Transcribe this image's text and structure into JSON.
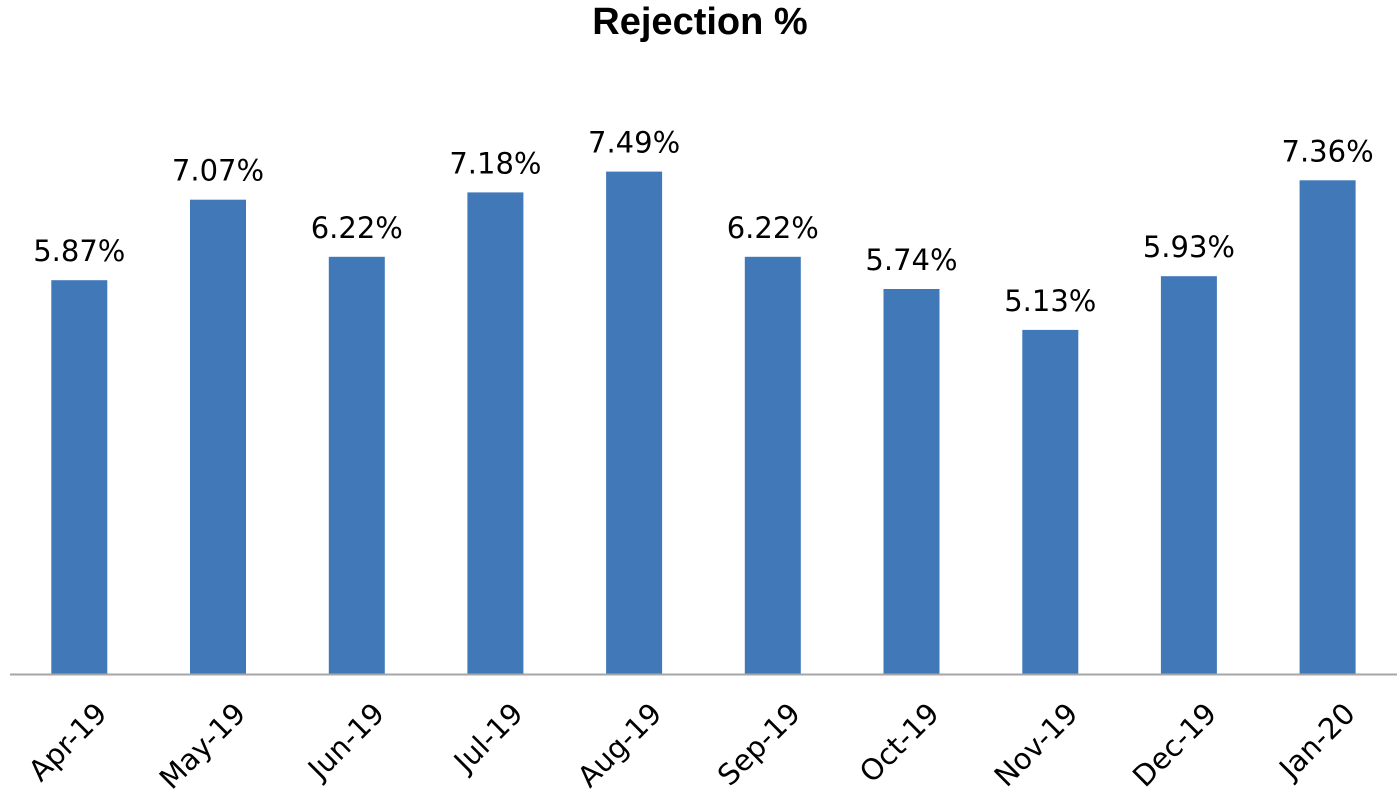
{
  "chart_data": {
    "type": "bar",
    "title": "Rejection %",
    "xlabel": "",
    "ylabel": "",
    "categories": [
      "Apr-19",
      "May-19",
      "Jun-19",
      "Jul-19",
      "Aug-19",
      "Sep-19",
      "Oct-19",
      "Nov-19",
      "Dec-19",
      "Jan-20"
    ],
    "values": [
      5.87,
      7.07,
      6.22,
      7.18,
      7.49,
      6.22,
      5.74,
      5.13,
      5.93,
      7.36
    ],
    "data_labels": [
      "5.87%",
      "7.07%",
      "6.22%",
      "7.18%",
      "7.49%",
      "6.22%",
      "5.74%",
      "5.13%",
      "5.93%",
      "7.36%"
    ],
    "ylim": [
      0,
      8.05
    ],
    "grid": false,
    "legend": "none",
    "bar_color": "#4178B8",
    "axis_color": "#A6A6A6"
  }
}
